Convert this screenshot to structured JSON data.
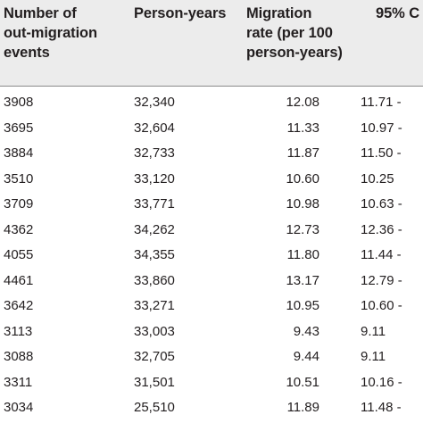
{
  "table": {
    "headers": {
      "events": "Number of\nout-migration\nevents",
      "person_years": "Person-years",
      "rate": "Migration\nrate (per 100\nperson-years)",
      "ci": "95% C"
    },
    "rows": [
      {
        "events": "3908",
        "person_years": "32,340",
        "rate": "12.08",
        "ci": "11.71 -"
      },
      {
        "events": "3695",
        "person_years": "32,604",
        "rate": "11.33",
        "ci": "10.97 -"
      },
      {
        "events": "3884",
        "person_years": "32,733",
        "rate": "11.87",
        "ci": "11.50 -"
      },
      {
        "events": "3510",
        "person_years": "33,120",
        "rate": "10.60",
        "ci": "10.25"
      },
      {
        "events": "3709",
        "person_years": "33,771",
        "rate": "10.98",
        "ci": "10.63 -"
      },
      {
        "events": "4362",
        "person_years": "34,262",
        "rate": "12.73",
        "ci": "12.36 -"
      },
      {
        "events": "4055",
        "person_years": "34,355",
        "rate": "11.80",
        "ci": "11.44 -"
      },
      {
        "events": "4461",
        "person_years": "33,860",
        "rate": "13.17",
        "ci": "12.79 -"
      },
      {
        "events": "3642",
        "person_years": "33,271",
        "rate": "10.95",
        "ci": "10.60 -"
      },
      {
        "events": "3113",
        "person_years": "33,003",
        "rate": "9.43",
        "ci": "9.11"
      },
      {
        "events": "3088",
        "person_years": "32,705",
        "rate": "9.44",
        "ci": "9.11"
      },
      {
        "events": "3311",
        "person_years": "31,501",
        "rate": "10.51",
        "ci": "10.16 -"
      },
      {
        "events": "3034",
        "person_years": "25,510",
        "rate": "11.89",
        "ci": "11.48 -"
      }
    ]
  }
}
